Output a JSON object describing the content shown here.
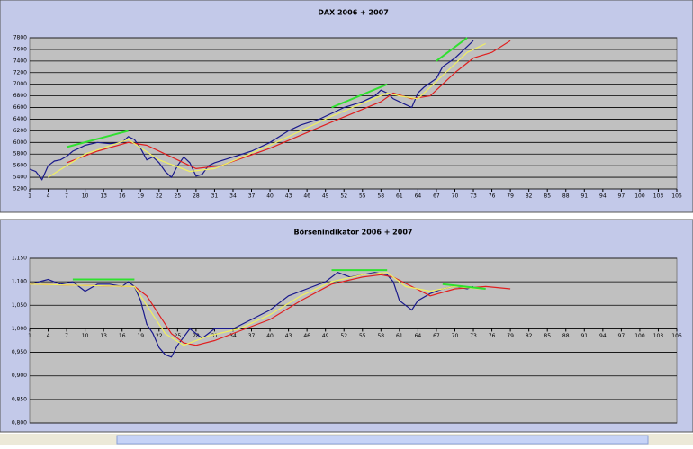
{
  "chart_data": [
    {
      "type": "line",
      "title": "DAX 2006 + 2007",
      "xlim": [
        1,
        106
      ],
      "xticks": [
        1,
        4,
        7,
        10,
        13,
        16,
        19,
        22,
        25,
        28,
        31,
        34,
        37,
        40,
        43,
        46,
        49,
        52,
        55,
        58,
        61,
        64,
        67,
        70,
        73,
        76,
        79,
        82,
        85,
        88,
        91,
        94,
        97,
        100,
        103,
        106
      ],
      "ylim": [
        5200,
        7800
      ],
      "yticks": [
        5200,
        5400,
        5600,
        5800,
        6000,
        6200,
        6400,
        6600,
        6800,
        7000,
        7200,
        7400,
        7600,
        7800
      ],
      "grid": true,
      "series": [
        {
          "color": "#1a1a8c",
          "x": [
            1,
            2,
            3,
            4,
            5,
            6,
            7,
            8,
            9,
            10,
            12,
            14,
            16,
            17,
            18,
            19,
            20,
            21,
            22,
            23,
            24,
            25,
            26,
            27,
            28,
            29,
            30,
            31,
            34,
            37,
            40,
            43,
            45,
            48,
            50,
            52,
            55,
            57,
            58,
            59,
            60,
            61,
            62,
            63,
            64,
            65,
            67,
            68,
            70,
            71,
            72,
            73
          ],
          "values": [
            5540,
            5500,
            5360,
            5600,
            5680,
            5700,
            5760,
            5850,
            5900,
            5950,
            6000,
            5980,
            6000,
            6100,
            6050,
            5900,
            5700,
            5750,
            5650,
            5500,
            5400,
            5600,
            5750,
            5650,
            5420,
            5450,
            5600,
            5650,
            5750,
            5850,
            6000,
            6200,
            6300,
            6400,
            6500,
            6600,
            6700,
            6800,
            6900,
            6850,
            6750,
            6700,
            6650,
            6600,
            6850,
            6950,
            7100,
            7300,
            7450,
            7550,
            7650,
            7750
          ]
        },
        {
          "color": "#e02020",
          "x": [
            7,
            12,
            17,
            20,
            25,
            28,
            32,
            40,
            50,
            58,
            60,
            63,
            66,
            70,
            73,
            76,
            79
          ],
          "values": [
            5650,
            5850,
            6000,
            5950,
            5700,
            5550,
            5600,
            5900,
            6350,
            6700,
            6850,
            6750,
            6800,
            7200,
            7450,
            7550,
            7750
          ]
        },
        {
          "color": "#f0f060",
          "x": [
            4,
            10,
            17,
            22,
            27,
            31,
            40,
            50,
            59,
            61,
            64,
            68,
            72,
            75
          ],
          "values": [
            5400,
            5800,
            6050,
            5700,
            5500,
            5550,
            5950,
            6450,
            6850,
            6800,
            6750,
            7150,
            7550,
            7700
          ]
        },
        {
          "color": "#30e030",
          "x": [
            7,
            17
          ],
          "values": [
            5920,
            6200
          ]
        },
        {
          "color": "#30e030",
          "x": [
            50,
            59
          ],
          "values": [
            6600,
            7000
          ]
        },
        {
          "color": "#30e030",
          "x": [
            67,
            72
          ],
          "values": [
            7400,
            7800
          ]
        }
      ]
    },
    {
      "type": "line",
      "title": "Börsenindikator 2006 + 2007",
      "xlim": [
        1,
        106
      ],
      "xticks": [
        1,
        4,
        7,
        10,
        13,
        16,
        19,
        22,
        25,
        28,
        31,
        34,
        37,
        40,
        43,
        46,
        49,
        52,
        55,
        58,
        61,
        64,
        67,
        70,
        73,
        76,
        79,
        82,
        85,
        88,
        91,
        94,
        97,
        100,
        103,
        106
      ],
      "xaxis_crossing": 1,
      "ylim": [
        0.8,
        1.15
      ],
      "yticks": [
        {
          "value": 0.8,
          "label": "0,800"
        },
        {
          "value": 0.85,
          "label": "0,850"
        },
        {
          "value": 0.9,
          "label": "0,900"
        },
        {
          "value": 0.95,
          "label": "0,950"
        },
        {
          "value": 1,
          "label": "1,000"
        },
        {
          "value": 1.05,
          "label": "1,050"
        },
        {
          "value": 1.1,
          "label": "1,100"
        },
        {
          "value": 1.15,
          "label": "1,150"
        }
      ],
      "grid": true,
      "series": [
        {
          "color": "#1a1a8c",
          "x": [
            1,
            4,
            6,
            8,
            10,
            12,
            14,
            16,
            17,
            18,
            19,
            20,
            21,
            22,
            23,
            24,
            25,
            27,
            29,
            31,
            34,
            37,
            40,
            43,
            46,
            49,
            51,
            53,
            55,
            57,
            59,
            60,
            61,
            62,
            63,
            64,
            66,
            68,
            70,
            72,
            73
          ],
          "values": [
            1.095,
            1.105,
            1.095,
            1.1,
            1.08,
            1.095,
            1.095,
            1.09,
            1.1,
            1.09,
            1.06,
            1.01,
            0.99,
            0.96,
            0.945,
            0.94,
            0.965,
            1.0,
            0.98,
            1.0,
            1.0,
            1.02,
            1.04,
            1.07,
            1.085,
            1.1,
            1.12,
            1.11,
            1.115,
            1.12,
            1.115,
            1.1,
            1.06,
            1.05,
            1.04,
            1.06,
            1.075,
            1.085,
            1.09,
            1.085,
            1.09
          ]
        },
        {
          "color": "#e02020",
          "x": [
            1,
            18,
            20,
            22,
            24,
            26,
            28,
            31,
            35,
            40,
            45,
            50,
            55,
            58,
            60,
            63,
            66,
            70,
            75,
            79
          ],
          "values": [
            1.095,
            1.09,
            1.07,
            1.03,
            0.99,
            0.97,
            0.965,
            0.975,
            0.995,
            1.02,
            1.06,
            1.095,
            1.11,
            1.115,
            1.11,
            1.09,
            1.07,
            1.085,
            1.09,
            1.085
          ]
        },
        {
          "color": "#f0f060",
          "x": [
            1,
            18,
            20,
            23,
            26,
            30,
            35,
            40,
            45,
            50,
            55,
            59,
            62,
            66,
            70,
            74
          ],
          "values": [
            1.095,
            1.09,
            1.05,
            0.99,
            0.965,
            0.985,
            1.0,
            1.03,
            1.07,
            1.1,
            1.115,
            1.12,
            1.09,
            1.08,
            1.09,
            1.085
          ]
        },
        {
          "color": "#30e030",
          "x": [
            8,
            18
          ],
          "values": [
            1.105,
            1.105
          ]
        },
        {
          "color": "#30e030",
          "x": [
            50,
            59
          ],
          "values": [
            1.125,
            1.125
          ]
        },
        {
          "color": "#30e030",
          "x": [
            68,
            75
          ],
          "values": [
            1.095,
            1.085
          ]
        }
      ]
    }
  ]
}
